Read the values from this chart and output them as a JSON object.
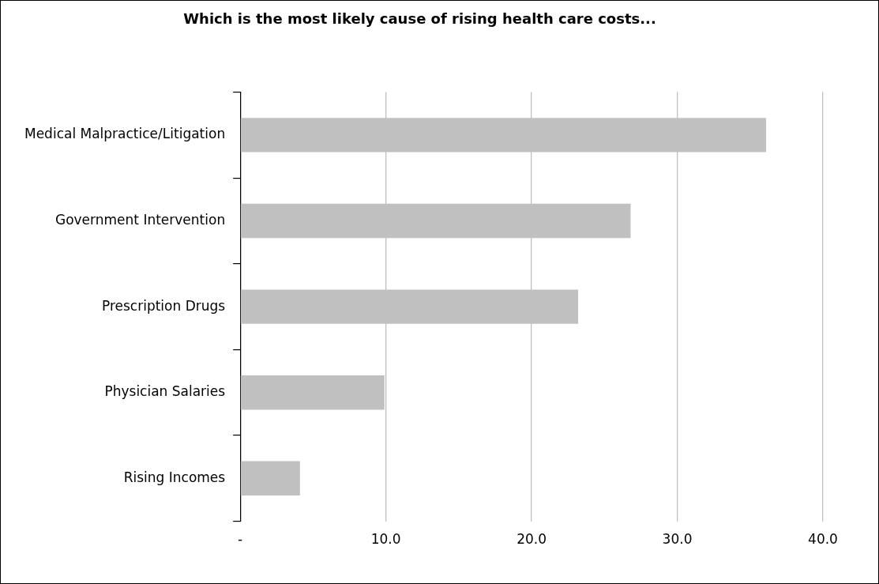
{
  "chart_data": {
    "type": "bar",
    "orientation": "horizontal",
    "title": "Which is the most likely cause of rising health care costs...",
    "categories": [
      "Medical Malpractice/Litigation",
      "Government Intervention",
      "Prescription Drugs",
      "Physician Salaries",
      "Rising Incomes"
    ],
    "values": [
      36.1,
      26.8,
      23.2,
      9.9,
      4.1
    ],
    "color": "#c0c0c0",
    "xlim": [
      0,
      40
    ],
    "xticks": [
      {
        "value": 0,
        "label": "-"
      },
      {
        "value": 10,
        "label": "10.0"
      },
      {
        "value": 20,
        "label": "20.0"
      },
      {
        "value": 30,
        "label": "30.0"
      },
      {
        "value": 40,
        "label": "40.0"
      }
    ],
    "grid": "x",
    "legend": false
  }
}
